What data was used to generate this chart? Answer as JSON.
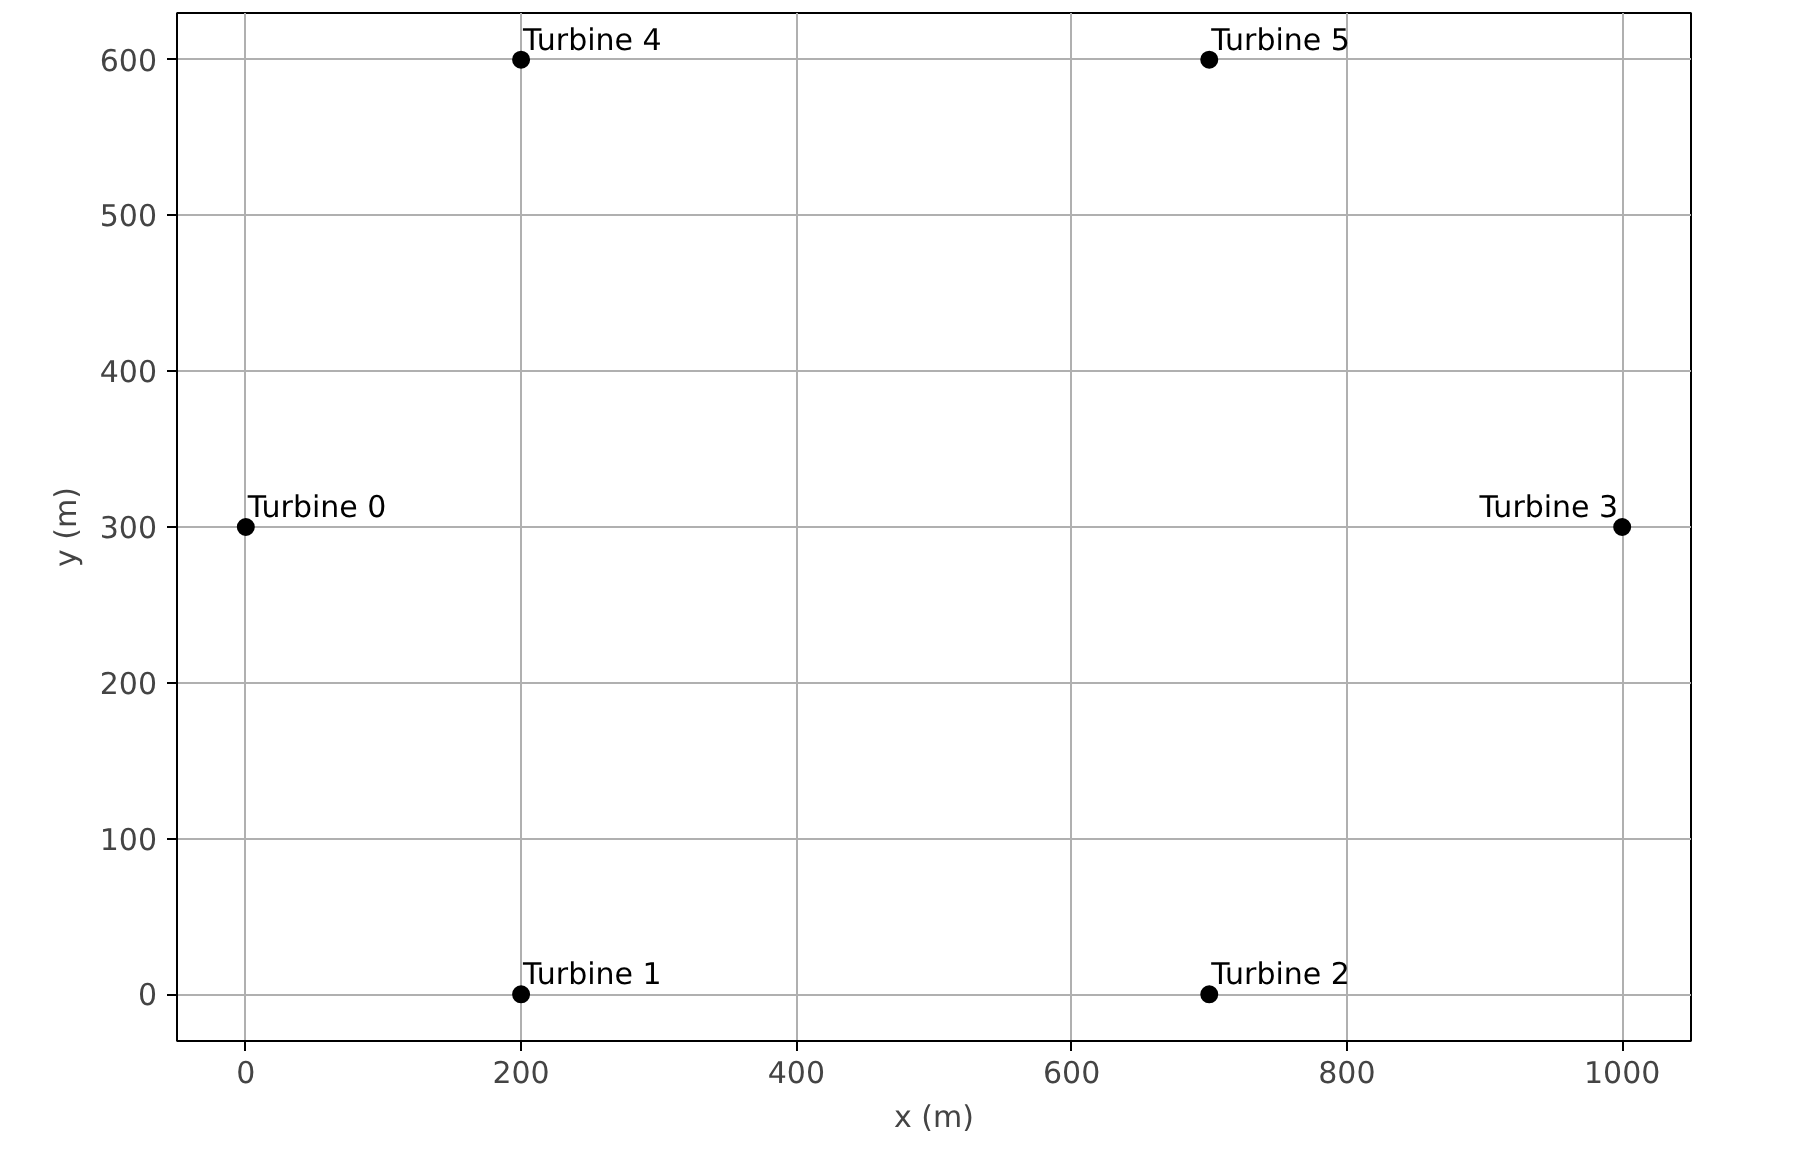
{
  "chart_data": {
    "type": "scatter",
    "xlabel": "x (m)",
    "ylabel": "y (m)",
    "x": [
      0,
      200,
      700,
      1000,
      200,
      700
    ],
    "values": [
      300,
      0,
      0,
      300,
      600,
      600
    ],
    "color": "#000000",
    "marker": "circle",
    "xlim": [
      -50,
      1050
    ],
    "ylim": [
      -30,
      630
    ],
    "xticks": [
      0,
      200,
      400,
      600,
      800,
      1000
    ],
    "yticks": [
      0,
      100,
      200,
      300,
      400,
      500,
      600
    ],
    "grid": true,
    "annotations": [
      {
        "text": "Turbine 0",
        "x": 0,
        "y": 300
      },
      {
        "text": "Turbine 1",
        "x": 200,
        "y": 0
      },
      {
        "text": "Turbine 2",
        "x": 700,
        "y": 0
      },
      {
        "text": "Turbine 3",
        "x": 1000,
        "y": 300
      },
      {
        "text": "Turbine 4",
        "x": 200,
        "y": 600
      },
      {
        "text": "Turbine 5",
        "x": 700,
        "y": 600
      }
    ]
  }
}
